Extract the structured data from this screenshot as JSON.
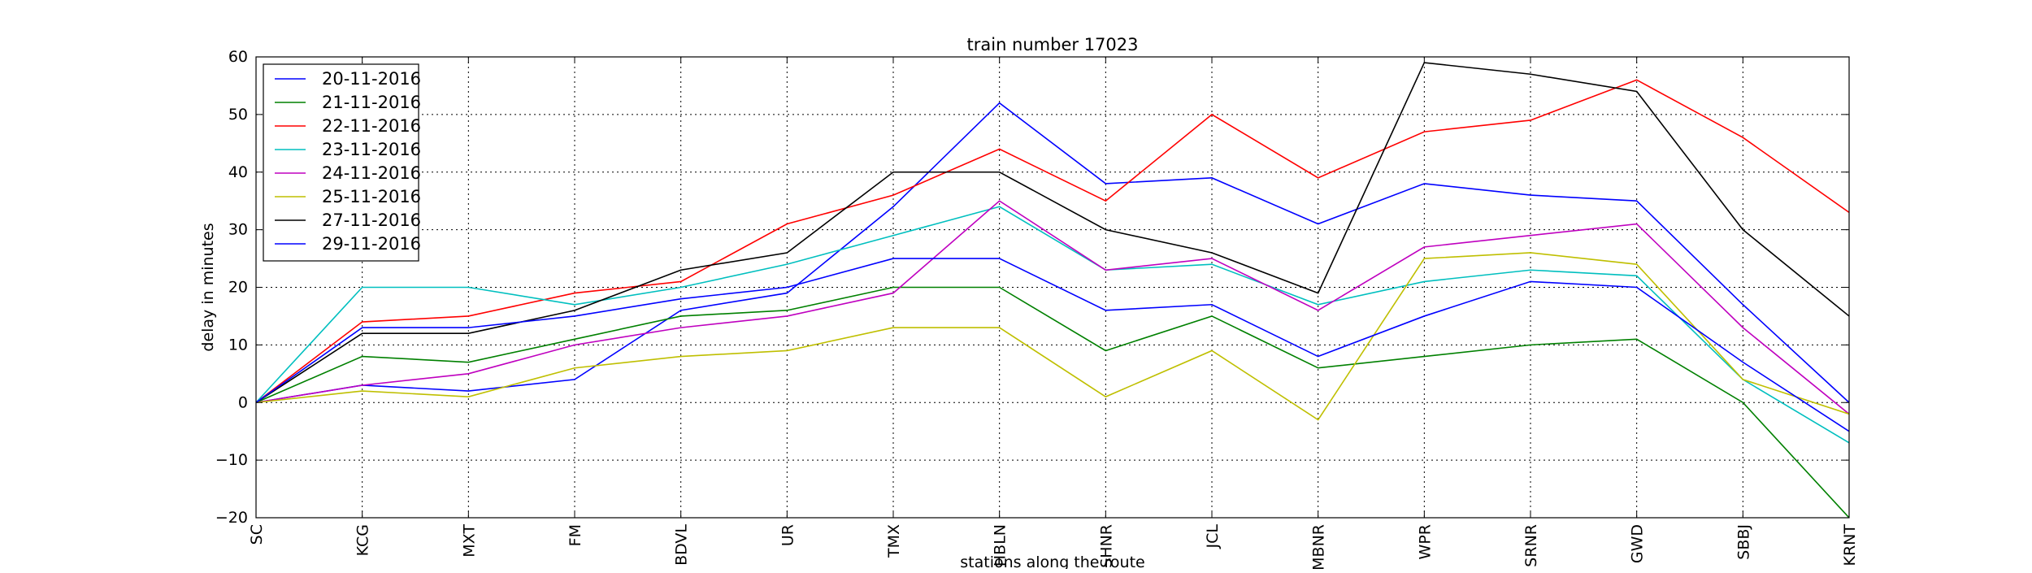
{
  "chart_data": {
    "type": "line",
    "title": "train number 17023",
    "xlabel": "stations along the route",
    "ylabel": "delay in minutes",
    "ylim": [
      -20,
      60
    ],
    "yticks": [
      -20,
      -10,
      0,
      10,
      20,
      30,
      40,
      50,
      60
    ],
    "grid": true,
    "legend_position": "top-left",
    "categories": [
      "SC",
      "KCG",
      "MXT",
      "FM",
      "BDVL",
      "UR",
      "TMX",
      "HBLN",
      "SHNR",
      "JCL",
      "MBNR",
      "WPR",
      "SRNR",
      "GWD",
      "SBBJ",
      "KRNT"
    ],
    "series": [
      {
        "name": "20-11-2016",
        "color": "#0000ff",
        "values": [
          0,
          3,
          2,
          4,
          16,
          19,
          34,
          52,
          38,
          39,
          31,
          38,
          36,
          35,
          17,
          0
        ]
      },
      {
        "name": "21-11-2016",
        "color": "#008000",
        "values": [
          0,
          8,
          7,
          11,
          15,
          16,
          20,
          20,
          9,
          15,
          6,
          8,
          10,
          11,
          0,
          -20
        ]
      },
      {
        "name": "22-11-2016",
        "color": "#ff0000",
        "values": [
          0,
          14,
          15,
          19,
          21,
          31,
          36,
          44,
          35,
          50,
          39,
          47,
          49,
          56,
          46,
          33
        ]
      },
      {
        "name": "23-11-2016",
        "color": "#00bfbf",
        "values": [
          0,
          20,
          20,
          17,
          20,
          24,
          29,
          34,
          23,
          24,
          17,
          21,
          23,
          22,
          4,
          -7
        ]
      },
      {
        "name": "24-11-2016",
        "color": "#bf00bf",
        "values": [
          0,
          3,
          5,
          10,
          13,
          15,
          19,
          35,
          23,
          25,
          16,
          27,
          29,
          31,
          13,
          -2
        ]
      },
      {
        "name": "25-11-2016",
        "color": "#bfbf00",
        "values": [
          0,
          2,
          1,
          6,
          8,
          9,
          13,
          13,
          1,
          9,
          -3,
          25,
          26,
          24,
          4,
          -2
        ]
      },
      {
        "name": "27-11-2016",
        "color": "#000000",
        "values": [
          0,
          12,
          12,
          16,
          23,
          26,
          40,
          40,
          30,
          26,
          19,
          59,
          57,
          54,
          30,
          15
        ]
      },
      {
        "name": "29-11-2016",
        "color": "#0000ff",
        "values": [
          0,
          13,
          13,
          15,
          18,
          20,
          25,
          25,
          16,
          17,
          8,
          15,
          21,
          20,
          7,
          -5
        ]
      }
    ]
  }
}
